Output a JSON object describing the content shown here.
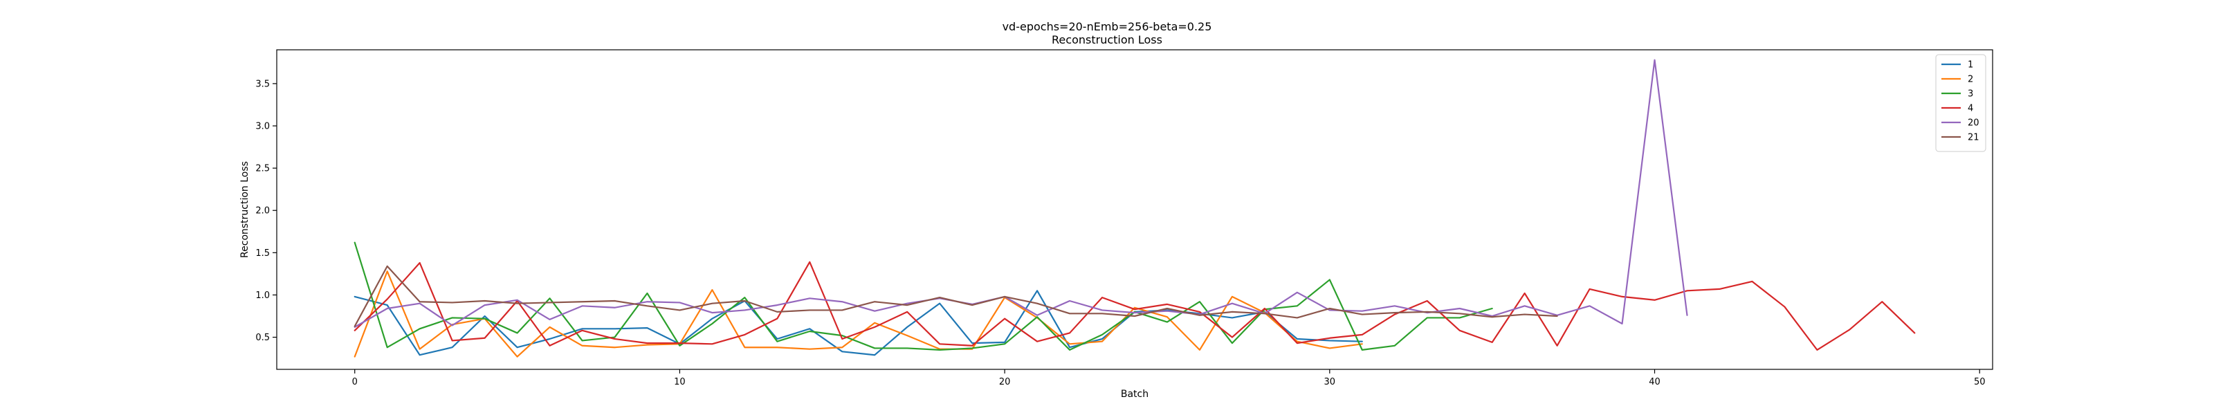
{
  "chart_data": {
    "type": "line",
    "title": "vd-epochs=20-nEmb=256-beta=0.25",
    "subtitle": "Reconstruction Loss",
    "xlabel": "Batch",
    "ylabel": "Reconstruction Loss",
    "xlim": [
      -2.4,
      50.4
    ],
    "ylim": [
      0.12,
      3.9
    ],
    "xticks": [
      0,
      10,
      20,
      30,
      40,
      50
    ],
    "yticks": [
      0.5,
      1.0,
      1.5,
      2.0,
      2.5,
      3.0,
      3.5
    ],
    "xtick_labels": [
      "0",
      "10",
      "20",
      "30",
      "40",
      "50"
    ],
    "ytick_labels": [
      "0.5",
      "1.0",
      "1.5",
      "2.0",
      "2.5",
      "3.0",
      "3.5"
    ],
    "legend_position": "top-right",
    "grid": false,
    "series": [
      {
        "name": "1",
        "color": "#1f77b4",
        "x": [
          0,
          1,
          2,
          3,
          4,
          5,
          6,
          7,
          8,
          9,
          10,
          11,
          12,
          13,
          14,
          15,
          16,
          17,
          18,
          19,
          20,
          21,
          22,
          23,
          24,
          25,
          26,
          27,
          28,
          29,
          30,
          31
        ],
        "values": [
          0.98,
          0.88,
          0.29,
          0.38,
          0.75,
          0.38,
          0.48,
          0.6,
          0.6,
          0.61,
          0.42,
          0.72,
          0.93,
          0.48,
          0.6,
          0.33,
          0.29,
          0.62,
          0.9,
          0.43,
          0.44,
          1.05,
          0.38,
          0.48,
          0.8,
          0.82,
          0.78,
          0.73,
          0.8,
          0.48,
          0.46,
          0.45
        ]
      },
      {
        "name": "2",
        "color": "#ff7f0e",
        "x": [
          0,
          1,
          2,
          3,
          4,
          5,
          6,
          7,
          8,
          9,
          10,
          11,
          12,
          13,
          14,
          15,
          16,
          17,
          18,
          19,
          20,
          21,
          22,
          23,
          24,
          25,
          26,
          27,
          28,
          29,
          30,
          31
        ],
        "values": [
          0.27,
          1.28,
          0.36,
          0.65,
          0.72,
          0.27,
          0.62,
          0.4,
          0.38,
          0.41,
          0.42,
          1.06,
          0.38,
          0.38,
          0.36,
          0.38,
          0.67,
          0.52,
          0.36,
          0.36,
          0.97,
          0.73,
          0.42,
          0.45,
          0.85,
          0.74,
          0.35,
          0.98,
          0.79,
          0.45,
          0.37,
          0.42
        ]
      },
      {
        "name": "3",
        "color": "#2ca02c",
        "x": [
          0,
          1,
          2,
          3,
          4,
          5,
          6,
          7,
          8,
          9,
          10,
          11,
          12,
          13,
          14,
          15,
          16,
          17,
          18,
          19,
          20,
          21,
          22,
          23,
          24,
          25,
          26,
          27,
          28,
          29,
          30,
          31,
          32,
          33,
          34,
          35
        ],
        "values": [
          1.62,
          0.38,
          0.6,
          0.73,
          0.72,
          0.55,
          0.96,
          0.46,
          0.5,
          1.02,
          0.4,
          0.66,
          0.97,
          0.45,
          0.57,
          0.52,
          0.37,
          0.37,
          0.35,
          0.37,
          0.42,
          0.74,
          0.35,
          0.53,
          0.8,
          0.68,
          0.92,
          0.43,
          0.83,
          0.87,
          1.18,
          0.35,
          0.4,
          0.73,
          0.73,
          0.84
        ]
      },
      {
        "name": "4",
        "color": "#d62728",
        "x": [
          0,
          1,
          2,
          3,
          4,
          5,
          6,
          7,
          8,
          9,
          10,
          11,
          12,
          13,
          14,
          15,
          16,
          17,
          18,
          19,
          20,
          21,
          22,
          23,
          24,
          25,
          26,
          27,
          28,
          29,
          30,
          31,
          32,
          33,
          34,
          35,
          36,
          37,
          38,
          39,
          40,
          41,
          42,
          43,
          44,
          45,
          46,
          47,
          48
        ],
        "values": [
          0.58,
          0.95,
          1.38,
          0.46,
          0.49,
          0.93,
          0.4,
          0.58,
          0.48,
          0.43,
          0.43,
          0.42,
          0.53,
          0.72,
          1.39,
          0.48,
          0.62,
          0.8,
          0.42,
          0.4,
          0.72,
          0.45,
          0.55,
          0.97,
          0.83,
          0.89,
          0.8,
          0.5,
          0.84,
          0.43,
          0.49,
          0.53,
          0.77,
          0.93,
          0.58,
          0.44,
          1.02,
          0.4,
          1.07,
          0.98,
          0.94,
          1.05,
          1.07,
          1.16,
          0.86,
          0.35,
          0.59,
          0.92,
          0.55
        ]
      },
      {
        "name": "20",
        "color": "#9467bd",
        "x": [
          0,
          1,
          2,
          3,
          4,
          5,
          6,
          7,
          8,
          9,
          10,
          11,
          12,
          13,
          14,
          15,
          16,
          17,
          18,
          19,
          20,
          21,
          22,
          23,
          24,
          25,
          26,
          27,
          28,
          29,
          30,
          31,
          32,
          33,
          34,
          35,
          36,
          37,
          38,
          39,
          40,
          41
        ],
        "values": [
          0.62,
          0.84,
          0.9,
          0.64,
          0.88,
          0.94,
          0.71,
          0.87,
          0.85,
          0.92,
          0.91,
          0.79,
          0.82,
          0.88,
          0.96,
          0.92,
          0.81,
          0.9,
          0.96,
          0.89,
          0.98,
          0.76,
          0.93,
          0.82,
          0.79,
          0.81,
          0.77,
          0.9,
          0.78,
          1.03,
          0.82,
          0.81,
          0.87,
          0.79,
          0.84,
          0.75,
          0.87,
          0.76,
          0.87,
          0.66,
          3.78,
          0.76
        ]
      },
      {
        "name": "21",
        "color": "#8c564b",
        "x": [
          0,
          1,
          2,
          3,
          4,
          5,
          6,
          7,
          8,
          9,
          10,
          11,
          12,
          13,
          14,
          15,
          16,
          17,
          18,
          19,
          20,
          21,
          22,
          23,
          24,
          25,
          26,
          27,
          28,
          29,
          30,
          31,
          32,
          33,
          34,
          35,
          36,
          37
        ],
        "values": [
          0.63,
          1.34,
          0.92,
          0.91,
          0.93,
          0.9,
          0.91,
          0.92,
          0.93,
          0.87,
          0.82,
          0.9,
          0.93,
          0.8,
          0.82,
          0.82,
          0.92,
          0.88,
          0.97,
          0.88,
          0.98,
          0.9,
          0.78,
          0.78,
          0.75,
          0.84,
          0.76,
          0.8,
          0.78,
          0.73,
          0.84,
          0.77,
          0.79,
          0.8,
          0.78,
          0.74,
          0.77,
          0.75
        ]
      }
    ]
  }
}
